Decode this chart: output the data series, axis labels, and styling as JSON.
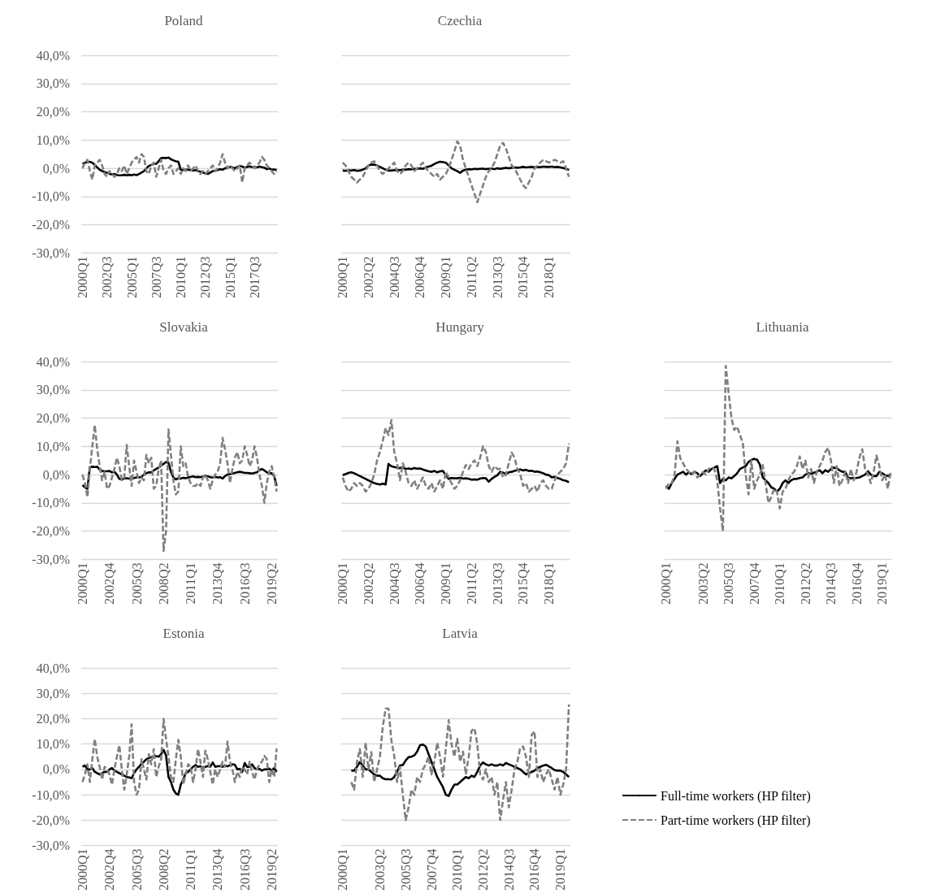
{
  "chart_data": [
    {
      "type": "line",
      "title": "Poland",
      "grid": "y",
      "ylim": [
        -30,
        40
      ],
      "yticks": [
        {
          "value": -30,
          "label": "-30,0%"
        },
        {
          "value": -20,
          "label": "-20,0%"
        },
        {
          "value": -10,
          "label": "-10,0%"
        },
        {
          "value": 0,
          "label": "0,0%"
        },
        {
          "value": 10,
          "label": "10,0%"
        },
        {
          "value": 20,
          "label": "20,0%"
        },
        {
          "value": 30,
          "label": "30,0%"
        },
        {
          "value": 40,
          "label": "40,0%"
        }
      ],
      "categories": [
        "2000Q1",
        null,
        null,
        null,
        null,
        null,
        null,
        null,
        null,
        null,
        "2002Q3",
        null,
        null,
        null,
        null,
        null,
        null,
        null,
        null,
        null,
        "2005Q1",
        null,
        null,
        null,
        null,
        null,
        null,
        null,
        null,
        null,
        "2007Q3",
        null,
        null,
        null,
        null,
        null,
        null,
        null,
        null,
        null,
        "2010Q1",
        null,
        null,
        null,
        null,
        null,
        null,
        null,
        null,
        null,
        "2012Q3",
        null,
        null,
        null,
        null,
        null,
        null,
        null,
        null,
        null,
        "2015Q1",
        null,
        null,
        null,
        null,
        null,
        null,
        null,
        null,
        null,
        "2017Q3",
        null,
        null,
        null,
        null,
        null,
        null,
        null,
        null,
        null
      ],
      "series": [
        {
          "color": "#000000",
          "line_style": "solid",
          "values": [
            1.5,
            2,
            2.2,
            2.3,
            2,
            1.2,
            0.3,
            -0.5,
            -1,
            -1.3,
            -1.6,
            -2,
            -2.2,
            -2,
            -2.4,
            -2.5,
            -2.5,
            -2.3,
            -2.5,
            -2.3,
            -2.5,
            -2.2,
            -2.4,
            -2,
            -1.5,
            -1,
            0,
            0.8,
            1.2,
            1.5,
            1.6,
            2.5,
            3.6,
            3.7,
            3.6,
            3.8,
            3.2,
            2.8,
            2.5,
            2.3,
            -0.5,
            -0.6,
            -0.5,
            -0.5,
            -0.7,
            -0.8,
            -0.6,
            -1,
            -1.2,
            -1.5,
            -1.8,
            -2,
            -1.5,
            -1,
            -0.8,
            -0.6,
            -0.3,
            -0.5,
            0,
            0.2,
            0.5,
            0.3,
            0,
            0.5,
            0.8,
            0.6,
            0.2,
            0.5,
            0.7,
            0.4,
            0.5,
            0.3,
            0.6,
            0.4,
            0.2,
            -0.3,
            0,
            -0.5,
            -0.4,
            -0.6
          ]
        },
        {
          "color": "#808080",
          "line_style": "dashed",
          "values": [
            0,
            2,
            3,
            -1,
            -4,
            1,
            2,
            3,
            1,
            -2,
            -3,
            -1,
            -2,
            -3,
            -2,
            0,
            -1,
            1,
            -2,
            0,
            2,
            3,
            4,
            2,
            5,
            4,
            -1,
            -2,
            1,
            2,
            -3,
            0,
            3,
            -1,
            -2,
            0,
            1,
            -2,
            -1,
            0,
            -2,
            0,
            -1,
            1,
            -1,
            0,
            1,
            -1,
            -2,
            -1,
            -2,
            -1,
            0,
            1,
            -1,
            0,
            2,
            5,
            2,
            0,
            1,
            0,
            -1,
            0,
            1,
            -5,
            0,
            1,
            2,
            1,
            0,
            1,
            2,
            4,
            3,
            1,
            0,
            -1,
            -2,
            -1
          ]
        }
      ]
    },
    {
      "type": "line",
      "title": "Czechia",
      "grid": "y",
      "tick_labels": "x",
      "ylim": [
        -30,
        40
      ],
      "yticks": [
        -30,
        -20,
        -10,
        0,
        10,
        20,
        30,
        40
      ],
      "categories": [
        "2000Q1",
        null,
        null,
        null,
        null,
        null,
        null,
        null,
        null,
        "2002Q2",
        null,
        null,
        null,
        null,
        null,
        null,
        null,
        null,
        "2004Q3",
        null,
        null,
        null,
        null,
        null,
        null,
        null,
        null,
        "2006Q4",
        null,
        null,
        null,
        null,
        null,
        null,
        null,
        null,
        "2009Q1",
        null,
        null,
        null,
        null,
        null,
        null,
        null,
        null,
        "2011Q2",
        null,
        null,
        null,
        null,
        null,
        null,
        null,
        null,
        "2013Q3",
        null,
        null,
        null,
        null,
        null,
        null,
        null,
        null,
        "2015Q4",
        null,
        null,
        null,
        null,
        null,
        null,
        null,
        null,
        "2018Q1",
        null,
        null,
        null,
        null,
        null,
        null,
        null
      ],
      "series": [
        {
          "color": "#000000",
          "line_style": "solid",
          "values": [
            -0.8,
            -0.9,
            -0.7,
            -0.8,
            -0.6,
            -0.9,
            -0.8,
            -0.5,
            0,
            1,
            1.3,
            1.3,
            1,
            0.5,
            0,
            -0.5,
            -0.8,
            -0.8,
            -0.7,
            -0.6,
            -0.7,
            -0.5,
            -0.5,
            -0.3,
            -0.4,
            -0.2,
            -0.2,
            0,
            -0.2,
            0.3,
            0.6,
            0.9,
            1.5,
            2,
            2.3,
            2.2,
            2,
            1,
            0,
            -0.5,
            -1,
            -1.6,
            -0.8,
            -0.5,
            -0.3,
            -0.4,
            -0.2,
            -0.3,
            -0.2,
            -0.1,
            -0.3,
            -0.2,
            -0.1,
            -0.3,
            0,
            -0.2,
            0,
            0.2,
            0,
            0.2,
            0.3,
            0.2,
            0.3,
            0.5,
            0.3,
            0.4,
            0.5,
            0.3,
            0.5,
            0.4,
            0.6,
            0.5,
            0.5,
            0.6,
            0.4,
            0.5,
            0.3,
            0.1,
            -0.2,
            -0.6
          ]
        },
        {
          "color": "#808080",
          "line_style": "dashed",
          "values": [
            2,
            1,
            -1,
            -3,
            -4,
            -5,
            -4,
            -3,
            -1,
            1,
            2,
            2.5,
            1,
            -1,
            -2,
            -1,
            0,
            1,
            2,
            -1,
            -2,
            -1,
            1,
            2,
            1,
            -1,
            0,
            1,
            2,
            0,
            -1,
            -2,
            -3,
            -2,
            -4,
            -3,
            -2,
            0,
            3,
            6,
            9.5,
            8,
            3,
            0,
            -3,
            -6,
            -9,
            -12,
            -9,
            -6,
            -3,
            -1,
            0,
            2,
            5,
            8,
            9,
            7,
            4,
            1,
            0,
            -2,
            -4,
            -6,
            -7,
            -5,
            -3,
            0,
            1,
            2,
            3,
            2.5,
            2,
            2.5,
            3,
            2.5,
            2,
            2.5,
            0,
            -3
          ]
        }
      ]
    },
    {
      "type": "line",
      "title": "Slovakia",
      "grid": "y",
      "ylim": [
        -30,
        40
      ],
      "yticks": [
        {
          "value": -30,
          "label": "-30,0%"
        },
        {
          "value": -20,
          "label": "-20,0%"
        },
        {
          "value": -10,
          "label": "-10,0%"
        },
        {
          "value": 0,
          "label": "0,0%"
        },
        {
          "value": 10,
          "label": "10,0%"
        },
        {
          "value": 20,
          "label": "20,0%"
        },
        {
          "value": 30,
          "label": "30,0%"
        },
        {
          "value": 40,
          "label": "40,0%"
        }
      ],
      "categories": [
        "2000Q1",
        null,
        null,
        null,
        null,
        null,
        null,
        null,
        null,
        null,
        null,
        "2002Q4",
        null,
        null,
        null,
        null,
        null,
        null,
        null,
        null,
        null,
        null,
        "2005Q3",
        null,
        null,
        null,
        null,
        null,
        null,
        null,
        null,
        null,
        null,
        "2008Q2",
        null,
        null,
        null,
        null,
        null,
        null,
        null,
        null,
        null,
        null,
        "2011Q1",
        null,
        null,
        null,
        null,
        null,
        null,
        null,
        null,
        null,
        null,
        "2013Q4",
        null,
        null,
        null,
        null,
        null,
        null,
        null,
        null,
        null,
        null,
        "2016Q3",
        null,
        null,
        null,
        null,
        null,
        null,
        null,
        null,
        null,
        null,
        "2019Q2",
        null,
        null
      ],
      "series": [
        {
          "color": "#000000",
          "line_style": "solid",
          "values": [
            -3.7,
            -4.5,
            -5,
            2.6,
            2.8,
            2.7,
            2.8,
            1.8,
            1.3,
            1.2,
            1.2,
            1.3,
            0.8,
            1,
            0,
            -1.5,
            -1.8,
            -1.3,
            -1.3,
            -1.4,
            -1.5,
            -1.2,
            -1,
            -1,
            -0.8,
            0,
            0.5,
            0.8,
            0.8,
            1.5,
            2,
            2.5,
            3.2,
            3.8,
            4.5,
            4.2,
            1,
            -1,
            -1.7,
            -1.2,
            -1.4,
            -1.1,
            -1.3,
            -1,
            -0.8,
            -0.6,
            -0.9,
            -0.8,
            -0.9,
            -0.7,
            -0.5,
            -0.6,
            -0.9,
            -1,
            -0.8,
            -1,
            -0.9,
            -1.4,
            -0.5,
            0,
            0.2,
            0.4,
            0.6,
            0.8,
            1,
            0.8,
            0.6,
            0.6,
            0.5,
            0.4,
            0.6,
            0.8,
            1.6,
            2,
            1.5,
            0.8,
            0.5,
            0.5,
            -0.5,
            -4
          ]
        },
        {
          "color": "#808080",
          "line_style": "dashed",
          "values": [
            0,
            -3,
            -8,
            2,
            10,
            17.5,
            9,
            3,
            -2,
            1,
            -5,
            -4,
            -1,
            2,
            6,
            3,
            -2,
            -1,
            10.5,
            3,
            -4,
            5,
            1,
            -3,
            -1,
            -2,
            7,
            4,
            6,
            -5,
            -4,
            2,
            5,
            -27,
            -20,
            16,
            7,
            -2,
            -7,
            -6,
            10,
            3,
            4,
            -1,
            -3,
            -4,
            -4,
            -3,
            -4,
            -1,
            0,
            -2,
            -5,
            -2,
            0,
            1,
            4,
            13,
            9,
            4,
            -3,
            2,
            6,
            8,
            4,
            5,
            10,
            7,
            3,
            5,
            10,
            6,
            0,
            -4,
            -10,
            -3,
            1,
            3,
            -1,
            -6
          ]
        }
      ]
    },
    {
      "type": "line",
      "title": "Hungary",
      "grid": "y",
      "tick_labels": "x",
      "ylim": [
        -30,
        40
      ],
      "yticks": [
        -30,
        -20,
        -10,
        0,
        10,
        20,
        30,
        40
      ],
      "categories": [
        "2000Q1",
        null,
        null,
        null,
        null,
        null,
        null,
        null,
        null,
        "2002Q2",
        null,
        null,
        null,
        null,
        null,
        null,
        null,
        null,
        "2004Q3",
        null,
        null,
        null,
        null,
        null,
        null,
        null,
        null,
        "2006Q4",
        null,
        null,
        null,
        null,
        null,
        null,
        null,
        null,
        "2009Q1",
        null,
        null,
        null,
        null,
        null,
        null,
        null,
        null,
        "2011Q2",
        null,
        null,
        null,
        null,
        null,
        null,
        null,
        null,
        "2013Q3",
        null,
        null,
        null,
        null,
        null,
        null,
        null,
        null,
        "2015Q4",
        null,
        null,
        null,
        null,
        null,
        null,
        null,
        null,
        "2018Q1",
        null,
        null,
        null,
        null,
        null,
        null,
        null
      ],
      "series": [
        {
          "color": "#000000",
          "line_style": "solid",
          "values": [
            -0.2,
            0.2,
            0.6,
            0.8,
            0.5,
            0,
            -0.5,
            -1,
            -1.5,
            -2,
            -2.5,
            -3,
            -3.3,
            -3.5,
            -3.2,
            -3.5,
            3.8,
            3,
            2.7,
            2.5,
            2.3,
            2.6,
            2,
            2.2,
            2,
            2.3,
            2.1,
            2.2,
            1.8,
            1.5,
            1.2,
            1,
            1.3,
            0.8,
            1.2,
            1.3,
            -0.2,
            -1.5,
            -1.2,
            -1.3,
            -1.3,
            -1.1,
            -1.4,
            -1.3,
            -1.5,
            -1.8,
            -1.7,
            -1.8,
            -1.4,
            -1.2,
            -1.3,
            -2.5,
            -1.5,
            -0.8,
            -0.2,
            1,
            0.7,
            0.2,
            0.8,
            1,
            1.3,
            1.6,
            1.8,
            1.5,
            1.7,
            1.3,
            1.4,
            1,
            1.1,
            0.8,
            0.5,
            0,
            -0.2,
            -1,
            -0.8,
            -1.2,
            -1.5,
            -2,
            -2.2,
            -2.7
          ]
        },
        {
          "color": "#808080",
          "line_style": "dashed",
          "values": [
            -1,
            -4,
            -6,
            -5,
            -3,
            -4,
            -3,
            -4,
            -6,
            -5,
            -3,
            0,
            5,
            8,
            12,
            16.5,
            14,
            19.3,
            8,
            4,
            -2,
            4,
            1,
            -3,
            -4,
            -2,
            -5,
            -3,
            -1,
            -4,
            -5,
            -3,
            -6,
            -4,
            -2,
            -5,
            1,
            -1,
            -3,
            -5,
            -4,
            -2,
            1,
            3.4,
            2,
            4,
            5,
            3,
            6,
            10,
            8,
            3,
            1,
            3,
            2,
            2,
            -1,
            0,
            4,
            7.8,
            6,
            2,
            0,
            -4,
            -3,
            -6,
            -5,
            -4,
            -6,
            -3,
            -2,
            -4,
            -5,
            -5,
            -2,
            0,
            1,
            2,
            4,
            11
          ]
        }
      ]
    },
    {
      "type": "line",
      "title": "Lithuania",
      "grid": "y",
      "tick_labels": "x",
      "ylim": [
        -30,
        40
      ],
      "yticks": [
        -30,
        -20,
        -10,
        0,
        10,
        20,
        30,
        40
      ],
      "categories": [
        "2000Q1",
        null,
        null,
        null,
        null,
        null,
        null,
        null,
        null,
        null,
        null,
        null,
        null,
        "2003Q2",
        null,
        null,
        null,
        null,
        null,
        null,
        null,
        null,
        "2005Q3",
        null,
        null,
        null,
        null,
        null,
        null,
        null,
        null,
        "2007Q4",
        null,
        null,
        null,
        null,
        null,
        null,
        null,
        null,
        "2010Q1",
        null,
        null,
        null,
        null,
        null,
        null,
        null,
        null,
        "2012Q2",
        null,
        null,
        null,
        null,
        null,
        null,
        null,
        null,
        "2014Q3",
        null,
        null,
        null,
        null,
        null,
        null,
        null,
        null,
        "2016Q4",
        null,
        null,
        null,
        null,
        null,
        null,
        null,
        null,
        "2019Q1",
        null,
        null,
        null
      ],
      "series": [
        {
          "color": "#000000",
          "line_style": "solid",
          "values": [
            -4,
            -5,
            -3,
            -1.5,
            0,
            0.5,
            1,
            0,
            0.8,
            0.2,
            1,
            0.5,
            -0.5,
            0.5,
            1.5,
            1,
            2,
            2.5,
            3,
            -3,
            -1.5,
            -2,
            -1,
            -1.3,
            -0.5,
            0.5,
            2,
            2.5,
            3,
            4.5,
            5.2,
            5.6,
            5.3,
            3.5,
            -1,
            -2,
            -3,
            -4.5,
            -5,
            -6,
            -5,
            -3,
            -2,
            -3,
            -2,
            -1.5,
            -1.5,
            -1.2,
            -1,
            0,
            0.5,
            0.3,
            0.7,
            1,
            1.6,
            0.5,
            1.6,
            1,
            2,
            2.5,
            2.3,
            1.5,
            1,
            1,
            -1.1,
            -1.3,
            -1.2,
            -1.2,
            -1,
            -0.5,
            0,
            1.2,
            0,
            -0.5,
            -0.5,
            1,
            0.5,
            -0.2,
            -0.5,
            0
          ]
        },
        {
          "color": "#808080",
          "line_style": "dashed",
          "values": [
            -5,
            -3,
            -3,
            0,
            11.8,
            5.8,
            4,
            2,
            1,
            0,
            1,
            -1,
            0,
            1,
            0,
            2,
            2.5,
            2,
            -2,
            -12,
            -20,
            38.5,
            29,
            20,
            15.8,
            17,
            14,
            11.3,
            0,
            -7,
            5,
            -5,
            -2,
            0,
            3.4,
            -3,
            -10,
            -8,
            -5,
            -6,
            -12,
            -6,
            -5,
            -2,
            0,
            1,
            3,
            6.4,
            2,
            5,
            -1,
            2,
            -3,
            1,
            3,
            5,
            8,
            9.5,
            5,
            -3,
            3,
            -4,
            -2,
            1,
            -3,
            2,
            -2,
            1,
            6,
            9,
            2,
            0,
            -3,
            1,
            6.8,
            3,
            -2,
            0,
            -5,
            1
          ]
        }
      ]
    },
    {
      "type": "line",
      "title": "Estonia",
      "grid": "y",
      "ylim": [
        -30,
        40
      ],
      "yticks": [
        {
          "value": -30,
          "label": "-30,0%"
        },
        {
          "value": -20,
          "label": "-20,0%"
        },
        {
          "value": -10,
          "label": "-10,0%"
        },
        {
          "value": 0,
          "label": "0,0%"
        },
        {
          "value": 10,
          "label": "10,0%"
        },
        {
          "value": 20,
          "label": "20,0%"
        },
        {
          "value": 30,
          "label": "30,0%"
        },
        {
          "value": 40,
          "label": "40,0%"
        }
      ],
      "categories": [
        "2000Q1",
        null,
        null,
        null,
        null,
        null,
        null,
        null,
        null,
        null,
        null,
        "2002Q4",
        null,
        null,
        null,
        null,
        null,
        null,
        null,
        null,
        null,
        null,
        "2005Q3",
        null,
        null,
        null,
        null,
        null,
        null,
        null,
        null,
        null,
        null,
        "2008Q2",
        null,
        null,
        null,
        null,
        null,
        null,
        null,
        null,
        null,
        null,
        "2011Q1",
        null,
        null,
        null,
        null,
        null,
        null,
        null,
        null,
        null,
        null,
        "2013Q4",
        null,
        null,
        null,
        null,
        null,
        null,
        null,
        null,
        null,
        null,
        "2016Q3",
        null,
        null,
        null,
        null,
        null,
        null,
        null,
        null,
        null,
        null,
        "2019Q2",
        null,
        null
      ],
      "series": [
        {
          "color": "#000000",
          "line_style": "solid",
          "values": [
            1,
            1.5,
            0,
            0,
            0.5,
            -1,
            -1.5,
            -2,
            -1.5,
            -1,
            -1,
            0,
            0.5,
            -0.5,
            -1,
            -1.5,
            -2,
            -2.5,
            -3,
            -3.2,
            -3.5,
            -1.5,
            0,
            1,
            2.2,
            3,
            4,
            4.5,
            4.8,
            5,
            5.2,
            5,
            6,
            7.7,
            5.5,
            -3,
            -5,
            -8,
            -9.5,
            -10,
            -6,
            -4,
            -1.5,
            -1,
            0,
            1,
            1.7,
            1,
            1.2,
            0.5,
            1,
            1.3,
            1,
            2.7,
            1,
            1.2,
            1.3,
            1,
            1.5,
            1.2,
            1.6,
            2,
            1.8,
            0,
            0.2,
            -1,
            2.5,
            1,
            1,
            2,
            0.5,
            0,
            0.2,
            -0.5,
            0,
            0,
            0.3,
            -0.5,
            0.5,
            -1
          ]
        },
        {
          "color": "#808080",
          "line_style": "dashed",
          "values": [
            -5,
            -2,
            2,
            -5,
            4,
            12,
            5,
            1,
            -4,
            1,
            0,
            -2,
            -6,
            0,
            5,
            9.5,
            0,
            -8,
            -2,
            5,
            17.8,
            -5,
            -10,
            -8,
            4,
            0,
            -4,
            6,
            2,
            8,
            -3,
            1,
            4,
            19.9,
            12,
            5,
            -3,
            -5,
            4,
            11.6,
            5,
            -6,
            -2,
            2,
            1,
            -5,
            0,
            8,
            3,
            -3,
            7.4,
            4,
            -1,
            -6,
            0,
            -3,
            0,
            3,
            1,
            11,
            3,
            0,
            -5,
            -1,
            -3,
            1,
            0,
            -2,
            3,
            -1,
            -4,
            0,
            2,
            3,
            5.3,
            4,
            -5,
            0,
            -3,
            8.2
          ]
        }
      ]
    },
    {
      "type": "line",
      "title": "Latvia",
      "grid": "y",
      "tick_labels": "x",
      "legend": "right",
      "ylim": [
        -30,
        40
      ],
      "yticks": [
        -30,
        -20,
        -10,
        0,
        10,
        20,
        30,
        40
      ],
      "categories": [
        "2000Q1",
        null,
        null,
        null,
        null,
        null,
        null,
        null,
        null,
        null,
        null,
        null,
        null,
        "2003Q2",
        null,
        null,
        null,
        null,
        null,
        null,
        null,
        null,
        "2005Q3",
        null,
        null,
        null,
        null,
        null,
        null,
        null,
        null,
        "2007Q4",
        null,
        null,
        null,
        null,
        null,
        null,
        null,
        null,
        "2010Q1",
        null,
        null,
        null,
        null,
        null,
        null,
        null,
        null,
        "2012Q2",
        null,
        null,
        null,
        null,
        null,
        null,
        null,
        null,
        "2014Q3",
        null,
        null,
        null,
        null,
        null,
        null,
        null,
        null,
        "2016Q4",
        null,
        null,
        null,
        null,
        null,
        null,
        null,
        null,
        "2019Q1",
        null,
        null,
        null
      ],
      "series": [
        {
          "name": "Full-time workers (HP filter)",
          "color": "#000000",
          "line_style": "solid",
          "values": [
            null,
            null,
            null,
            -0.5,
            -0.5,
            1,
            2.9,
            1.5,
            0,
            0,
            -1,
            -2,
            -2.5,
            -2.5,
            -3.5,
            -3.9,
            -3.9,
            -4,
            -3,
            -1,
            1.5,
            1.7,
            3.5,
            4.8,
            5,
            5.5,
            7,
            9.5,
            9.8,
            9,
            6,
            3,
            0,
            -3,
            -5,
            -7,
            -10,
            -10.5,
            -8,
            -6,
            -6,
            -5,
            -4,
            -3,
            -3.5,
            -2.5,
            -3,
            -1,
            1.5,
            2.7,
            2,
            1.5,
            2,
            1.5,
            1.5,
            2,
            1.5,
            2.5,
            2,
            1.5,
            1,
            0.5,
            0,
            -1,
            -2,
            -1.5,
            -1,
            -0.5,
            0.5,
            1,
            1.5,
            1.8,
            1.2,
            0.5,
            -0.3,
            -0.5,
            -0.5,
            -1,
            -2,
            -3
          ]
        },
        {
          "name": "Part-time workers (HP filter)",
          "color": "#808080",
          "line_style": "dashed",
          "values": [
            null,
            null,
            null,
            -5,
            -8,
            3,
            8,
            -3,
            10.5,
            0,
            6.8,
            -5,
            0,
            5,
            16.8,
            24,
            24,
            11.5,
            5.3,
            -5,
            1,
            -10,
            -20,
            -15,
            -8,
            -10,
            -3,
            -5,
            0,
            2,
            5,
            -2,
            3,
            10.5,
            5,
            -3,
            8,
            19.4,
            10,
            5,
            12,
            3,
            7,
            -2,
            5,
            15.2,
            16.2,
            10,
            -2,
            -4,
            0,
            -5,
            -3,
            -10,
            -5,
            -20,
            -12,
            -5,
            -15,
            -8,
            0,
            3,
            8.5,
            9,
            5,
            -3,
            13.6,
            15,
            -3,
            0,
            -5,
            -2,
            0,
            -4,
            -8,
            -3,
            -10,
            -6,
            0,
            25.6
          ]
        }
      ]
    }
  ]
}
